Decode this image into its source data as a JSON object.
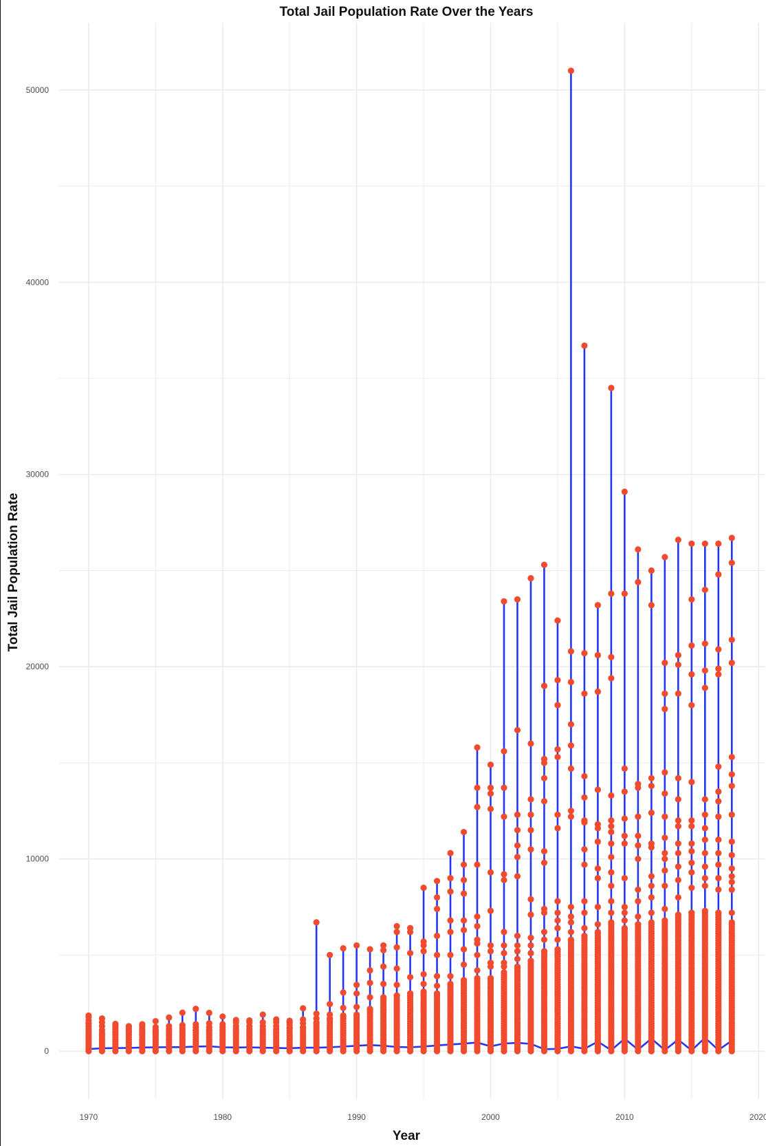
{
  "chart_data": {
    "type": "line",
    "title": "Total Jail Population Rate Over the Years",
    "xlabel": "Year",
    "ylabel": "Total Jail Population Rate",
    "xlim": [
      1967.8,
      2020.5
    ],
    "ylim": [
      -2500,
      53500
    ],
    "x_ticks": [
      1970,
      1980,
      1990,
      2000,
      2010,
      2020
    ],
    "y_ticks": [
      0,
      10000,
      20000,
      30000,
      40000,
      50000
    ],
    "grid": true,
    "background": "#ffffff",
    "grid_color": "#ebebeb",
    "line_color": "#2336f5",
    "point_color": "#f04a2f",
    "series": [
      {
        "x": 1970,
        "max": 1850,
        "high": [
          1780,
          1600,
          1450,
          1300,
          1150,
          1000,
          900,
          800
        ]
      },
      {
        "x": 1971,
        "max": 1700,
        "high": [
          1500,
          1300,
          1100,
          950,
          850
        ]
      },
      {
        "x": 1972,
        "max": 1420,
        "high": [
          1350,
          1250,
          1150,
          1000
        ]
      },
      {
        "x": 1973,
        "max": 1300,
        "high": [
          1250,
          1150,
          1050
        ]
      },
      {
        "x": 1974,
        "max": 1400,
        "high": [
          1300,
          1150,
          1050
        ]
      },
      {
        "x": 1975,
        "max": 1560,
        "high": [
          1250,
          1100,
          1000
        ]
      },
      {
        "x": 1976,
        "max": 1750,
        "high": [
          1300,
          1150,
          1050
        ]
      },
      {
        "x": 1977,
        "max": 2000,
        "high": [
          1350,
          1200,
          1050
        ]
      },
      {
        "x": 1978,
        "max": 2200,
        "high": [
          1400,
          1250,
          1100
        ]
      },
      {
        "x": 1979,
        "max": 1990,
        "high": [
          1450,
          1250,
          1100
        ]
      },
      {
        "x": 1980,
        "max": 1800,
        "high": [
          1400,
          1250,
          1100
        ]
      },
      {
        "x": 1981,
        "max": 1620,
        "high": [
          1500,
          1300,
          1150
        ]
      },
      {
        "x": 1982,
        "max": 1600,
        "high": [
          1500,
          1300,
          1150
        ]
      },
      {
        "x": 1983,
        "max": 1900,
        "high": [
          1500,
          1300,
          1150
        ]
      },
      {
        "x": 1984,
        "max": 1650,
        "high": [
          1500,
          1300,
          1150
        ]
      },
      {
        "x": 1985,
        "max": 1580,
        "high": [
          1500,
          1350,
          1200
        ]
      },
      {
        "x": 1986,
        "max": 2230,
        "high": [
          1650,
          1450,
          1250
        ]
      },
      {
        "x": 1987,
        "max": 6700,
        "high": [
          1950,
          1700,
          1500
        ]
      },
      {
        "x": 1988,
        "max": 5000,
        "high": [
          2450,
          1900,
          1700
        ]
      },
      {
        "x": 1989,
        "max": 5350,
        "high": [
          3050,
          2250,
          1850
        ]
      },
      {
        "x": 1990,
        "max": 5500,
        "high": [
          3450,
          3000,
          2300,
          1900
        ]
      },
      {
        "x": 1991,
        "max": 5300,
        "high": [
          4200,
          3550,
          2800,
          2200
        ]
      },
      {
        "x": 1992,
        "max": 5500,
        "high": [
          5250,
          4400,
          3500,
          2800
        ]
      },
      {
        "x": 1993,
        "max": 6500,
        "high": [
          6200,
          5400,
          4300,
          3450,
          2900
        ]
      },
      {
        "x": 1994,
        "max": 6400,
        "high": [
          6200,
          5100,
          3850,
          3000
        ]
      },
      {
        "x": 1995,
        "max": 8500,
        "high": [
          5700,
          5500,
          5200,
          4000,
          3500,
          3100
        ]
      },
      {
        "x": 1996,
        "max": 8850,
        "high": [
          8000,
          7400,
          6000,
          5000,
          3900,
          3400,
          3000
        ]
      },
      {
        "x": 1997,
        "max": 10300,
        "high": [
          9000,
          8300,
          6800,
          6200,
          5000,
          3900,
          3500
        ]
      },
      {
        "x": 1998,
        "max": 11400,
        "high": [
          9700,
          8900,
          8200,
          6800,
          6300,
          5300,
          4500,
          3700
        ]
      },
      {
        "x": 1999,
        "max": 15800,
        "high": [
          13700,
          12700,
          9700,
          7000,
          6500,
          5800,
          5600,
          5000,
          4200,
          3800
        ]
      },
      {
        "x": 2000,
        "max": 14900,
        "high": [
          13700,
          13400,
          12600,
          9300,
          7300,
          5500,
          5200,
          4600,
          4400,
          3800
        ]
      },
      {
        "x": 2001,
        "max": 23400,
        "high": [
          15600,
          13700,
          12200,
          9200,
          8900,
          6200,
          5500,
          5100,
          4600,
          4400,
          4100
        ]
      },
      {
        "x": 2002,
        "max": 23500,
        "high": [
          16700,
          12300,
          11500,
          10700,
          10100,
          9100,
          6000,
          5500,
          5200,
          4800,
          4400
        ]
      },
      {
        "x": 2003,
        "max": 24600,
        "high": [
          16000,
          13100,
          12300,
          11500,
          10500,
          7900,
          7100,
          5900,
          5500,
          5100,
          4700
        ]
      },
      {
        "x": 2004,
        "max": 25300,
        "high": [
          19000,
          15200,
          15000,
          14200,
          13000,
          10400,
          9800,
          7400,
          7200,
          6200,
          5800,
          5200
        ]
      },
      {
        "x": 2005,
        "max": 22400,
        "high": [
          19300,
          18000,
          15700,
          15300,
          12300,
          11600,
          7800,
          7200,
          6800,
          6400,
          5800,
          5300
        ]
      },
      {
        "x": 2006,
        "max": 51000,
        "high": [
          20800,
          19200,
          17000,
          15900,
          14700,
          12500,
          12200,
          7500,
          7000,
          6700,
          6200,
          5800
        ]
      },
      {
        "x": 2007,
        "max": 36700,
        "high": [
          20700,
          18600,
          14300,
          13200,
          12000,
          11900,
          10500,
          9700,
          7800,
          7200,
          6400,
          6000
        ]
      },
      {
        "x": 2008,
        "max": 23200,
        "high": [
          20600,
          18700,
          13600,
          11800,
          11600,
          10900,
          9500,
          9000,
          7500,
          6600,
          6200
        ]
      },
      {
        "x": 2009,
        "max": 34500,
        "high": [
          23800,
          20500,
          19400,
          13300,
          12000,
          11700,
          11400,
          10800,
          10100,
          9300,
          8600,
          7800,
          7200,
          6700
        ]
      },
      {
        "x": 2010,
        "max": 29100,
        "high": [
          23800,
          14700,
          13500,
          12100,
          11200,
          10800,
          9000,
          7500,
          7200,
          6800,
          6400
        ]
      },
      {
        "x": 2011,
        "max": 26100,
        "high": [
          24400,
          13900,
          13700,
          12200,
          11200,
          10700,
          10000,
          8400,
          7800,
          7000,
          6600
        ]
      },
      {
        "x": 2012,
        "max": 25000,
        "high": [
          23200,
          14200,
          13800,
          12400,
          10800,
          10600,
          9100,
          8600,
          8000,
          7200,
          6700
        ]
      },
      {
        "x": 2013,
        "max": 25700,
        "high": [
          20200,
          18600,
          17800,
          14500,
          13400,
          12200,
          11100,
          10300,
          10000,
          9400,
          8600,
          7400,
          6800
        ]
      },
      {
        "x": 2014,
        "max": 26600,
        "high": [
          20600,
          20100,
          18600,
          14200,
          13100,
          12000,
          11700,
          10800,
          10300,
          9600,
          8900,
          8000,
          7100
        ]
      },
      {
        "x": 2015,
        "max": 26400,
        "high": [
          23500,
          21100,
          19600,
          18000,
          14000,
          12000,
          11700,
          10800,
          10400,
          9800,
          9300,
          8500,
          7200
        ]
      },
      {
        "x": 2016,
        "max": 26400,
        "high": [
          24000,
          21200,
          19800,
          18900,
          13100,
          12300,
          11600,
          11000,
          10300,
          9600,
          9000,
          8600,
          7300
        ]
      },
      {
        "x": 2017,
        "max": 26400,
        "high": [
          24800,
          20900,
          19900,
          19600,
          14800,
          13500,
          13000,
          12200,
          11000,
          10300,
          9700,
          9000,
          8400,
          7200
        ]
      },
      {
        "x": 2018,
        "max": 26700,
        "high": [
          25400,
          21400,
          20200,
          15300,
          14400,
          13800,
          12300,
          10900,
          10200,
          9500,
          9100,
          8800,
          8400,
          7200,
          6700
        ]
      }
    ],
    "mean_line": [
      {
        "x": 1970,
        "y": 110
      },
      {
        "x": 1971,
        "y": 150
      },
      {
        "x": 1972,
        "y": 160
      },
      {
        "x": 1973,
        "y": 170
      },
      {
        "x": 1974,
        "y": 190
      },
      {
        "x": 1975,
        "y": 200
      },
      {
        "x": 1976,
        "y": 210
      },
      {
        "x": 1977,
        "y": 210
      },
      {
        "x": 1978,
        "y": 240
      },
      {
        "x": 1979,
        "y": 250
      },
      {
        "x": 1980,
        "y": 200
      },
      {
        "x": 1981,
        "y": 190
      },
      {
        "x": 1982,
        "y": 200
      },
      {
        "x": 1983,
        "y": 180
      },
      {
        "x": 1984,
        "y": 170
      },
      {
        "x": 1985,
        "y": 150
      },
      {
        "x": 1986,
        "y": 180
      },
      {
        "x": 1987,
        "y": 180
      },
      {
        "x": 1988,
        "y": 200
      },
      {
        "x": 1989,
        "y": 240
      },
      {
        "x": 1990,
        "y": 280
      },
      {
        "x": 1991,
        "y": 320
      },
      {
        "x": 1992,
        "y": 280
      },
      {
        "x": 1993,
        "y": 220
      },
      {
        "x": 1994,
        "y": 200
      },
      {
        "x": 1995,
        "y": 240
      },
      {
        "x": 1996,
        "y": 300
      },
      {
        "x": 1997,
        "y": 350
      },
      {
        "x": 1998,
        "y": 390
      },
      {
        "x": 1999,
        "y": 450
      },
      {
        "x": 2000,
        "y": 250
      },
      {
        "x": 2001,
        "y": 400
      },
      {
        "x": 2002,
        "y": 430
      },
      {
        "x": 2003,
        "y": 380
      },
      {
        "x": 2004,
        "y": 100
      },
      {
        "x": 2005,
        "y": 120
      },
      {
        "x": 2006,
        "y": 250
      },
      {
        "x": 2007,
        "y": 120
      },
      {
        "x": 2008,
        "y": 500
      },
      {
        "x": 2009,
        "y": 50
      },
      {
        "x": 2010,
        "y": 650
      },
      {
        "x": 2011,
        "y": 80
      },
      {
        "x": 2012,
        "y": 650
      },
      {
        "x": 2013,
        "y": 60
      },
      {
        "x": 2014,
        "y": 600
      },
      {
        "x": 2015,
        "y": 40
      },
      {
        "x": 2016,
        "y": 700
      },
      {
        "x": 2017,
        "y": 60
      },
      {
        "x": 2018,
        "y": 550
      }
    ]
  }
}
